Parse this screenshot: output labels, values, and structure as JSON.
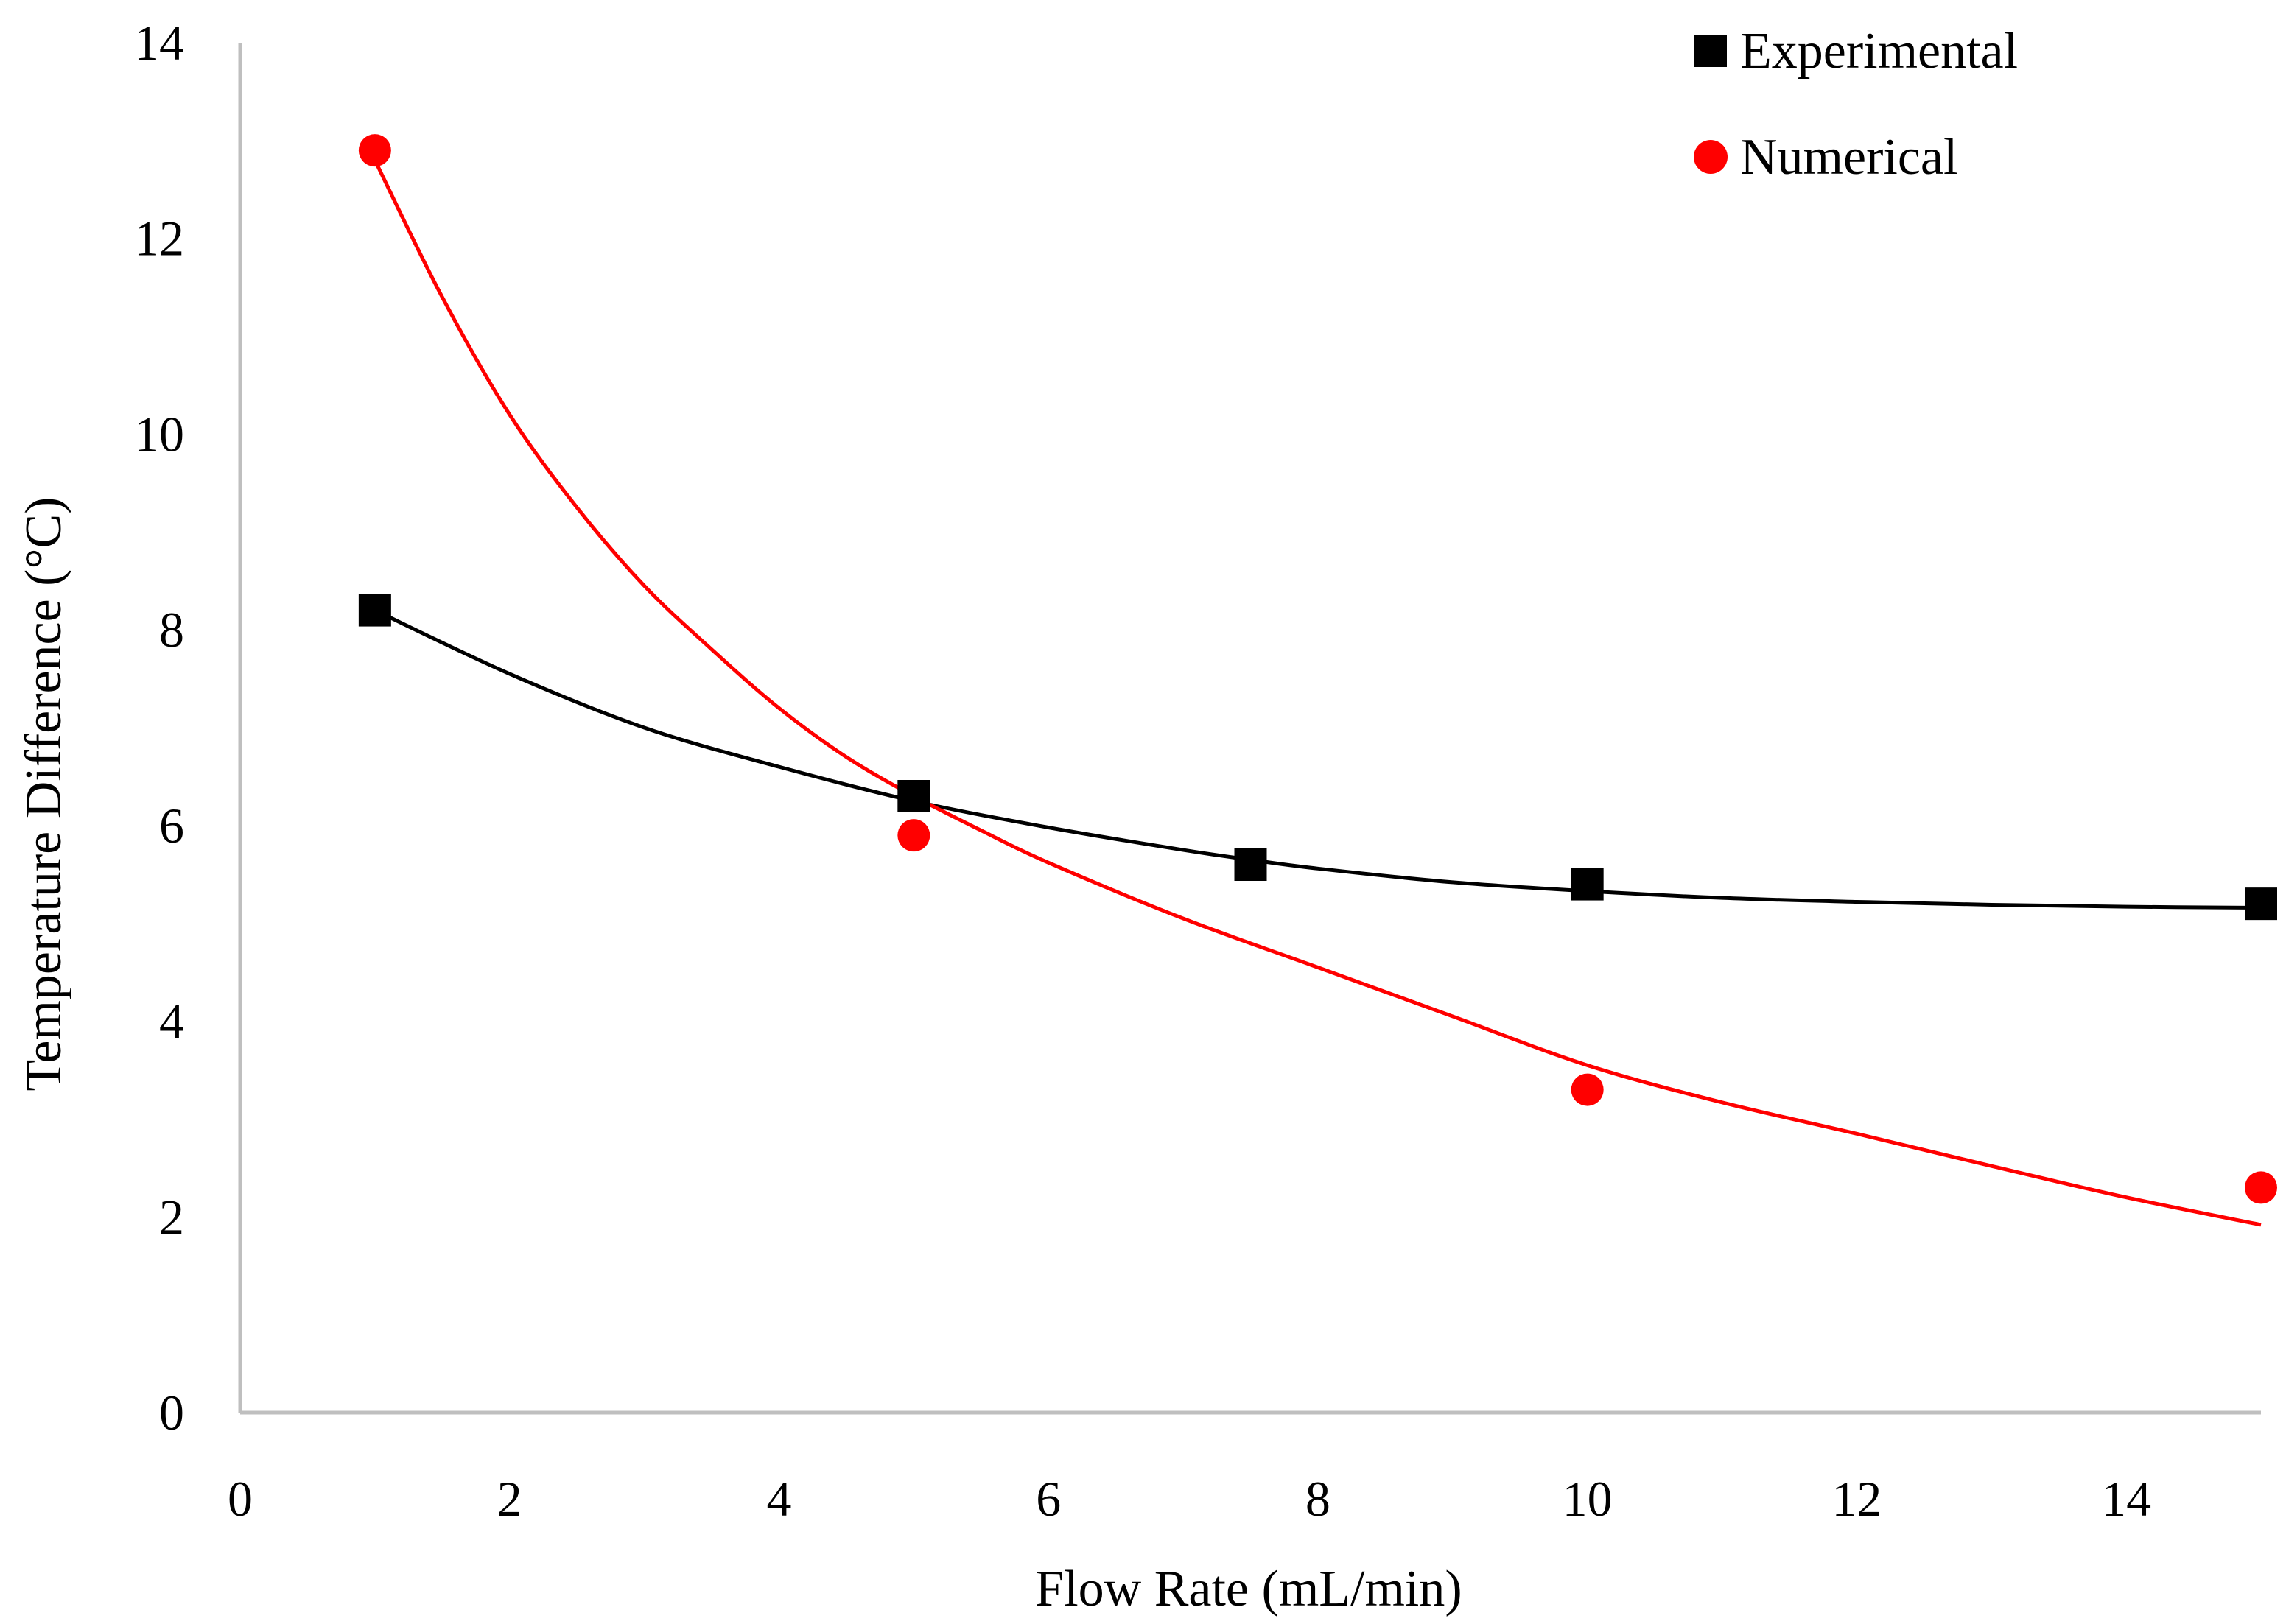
{
  "chart_data": {
    "type": "scatter",
    "title": "",
    "xlabel": "Flow Rate (mL/min)",
    "ylabel": "Temperature Difference (°C)",
    "xlim": [
      0,
      15
    ],
    "ylim": [
      0,
      14
    ],
    "xticks": [
      0,
      2,
      4,
      6,
      8,
      10,
      12,
      14
    ],
    "yticks": [
      0,
      2,
      4,
      6,
      8,
      10,
      12,
      14
    ],
    "grid": false,
    "legend_position": "top-right",
    "series": [
      {
        "name": "Experimental",
        "marker": "square",
        "color": "#000000",
        "points": [
          {
            "x": 1,
            "y": 8.2
          },
          {
            "x": 5,
            "y": 6.3
          },
          {
            "x": 7.5,
            "y": 5.6
          },
          {
            "x": 10,
            "y": 5.4
          },
          {
            "x": 15,
            "y": 5.2
          }
        ],
        "trendline": {
          "color": "#000000",
          "points": [
            {
              "x": 1,
              "y": 8.2
            },
            {
              "x": 2,
              "y": 7.55
            },
            {
              "x": 3,
              "y": 7.0
            },
            {
              "x": 4,
              "y": 6.6
            },
            {
              "x": 5,
              "y": 6.25
            },
            {
              "x": 6,
              "y": 5.98
            },
            {
              "x": 7,
              "y": 5.75
            },
            {
              "x": 7.5,
              "y": 5.65
            },
            {
              "x": 8,
              "y": 5.56
            },
            {
              "x": 9,
              "y": 5.42
            },
            {
              "x": 10,
              "y": 5.33
            },
            {
              "x": 11,
              "y": 5.26
            },
            {
              "x": 12,
              "y": 5.22
            },
            {
              "x": 13,
              "y": 5.19
            },
            {
              "x": 14,
              "y": 5.17
            },
            {
              "x": 15,
              "y": 5.16
            }
          ]
        }
      },
      {
        "name": "Numerical",
        "marker": "circle",
        "color": "#ff0000",
        "points": [
          {
            "x": 1,
            "y": 12.9
          },
          {
            "x": 5,
            "y": 5.9
          },
          {
            "x": 10,
            "y": 3.3
          },
          {
            "x": 15,
            "y": 2.3
          }
        ],
        "trendline": {
          "color": "#ff0000",
          "points": [
            {
              "x": 1,
              "y": 12.8
            },
            {
              "x": 1.5,
              "y": 11.4
            },
            {
              "x": 2,
              "y": 10.2
            },
            {
              "x": 2.5,
              "y": 9.25
            },
            {
              "x": 3,
              "y": 8.45
            },
            {
              "x": 3.5,
              "y": 7.8
            },
            {
              "x": 4,
              "y": 7.2
            },
            {
              "x": 4.5,
              "y": 6.7
            },
            {
              "x": 5,
              "y": 6.3
            },
            {
              "x": 5.5,
              "y": 5.95
            },
            {
              "x": 6,
              "y": 5.62
            },
            {
              "x": 7,
              "y": 5.05
            },
            {
              "x": 8,
              "y": 4.55
            },
            {
              "x": 9,
              "y": 4.05
            },
            {
              "x": 10,
              "y": 3.55
            },
            {
              "x": 11,
              "y": 3.17
            },
            {
              "x": 12,
              "y": 2.85
            },
            {
              "x": 13,
              "y": 2.52
            },
            {
              "x": 14,
              "y": 2.2
            },
            {
              "x": 15,
              "y": 1.92
            }
          ]
        }
      }
    ]
  }
}
